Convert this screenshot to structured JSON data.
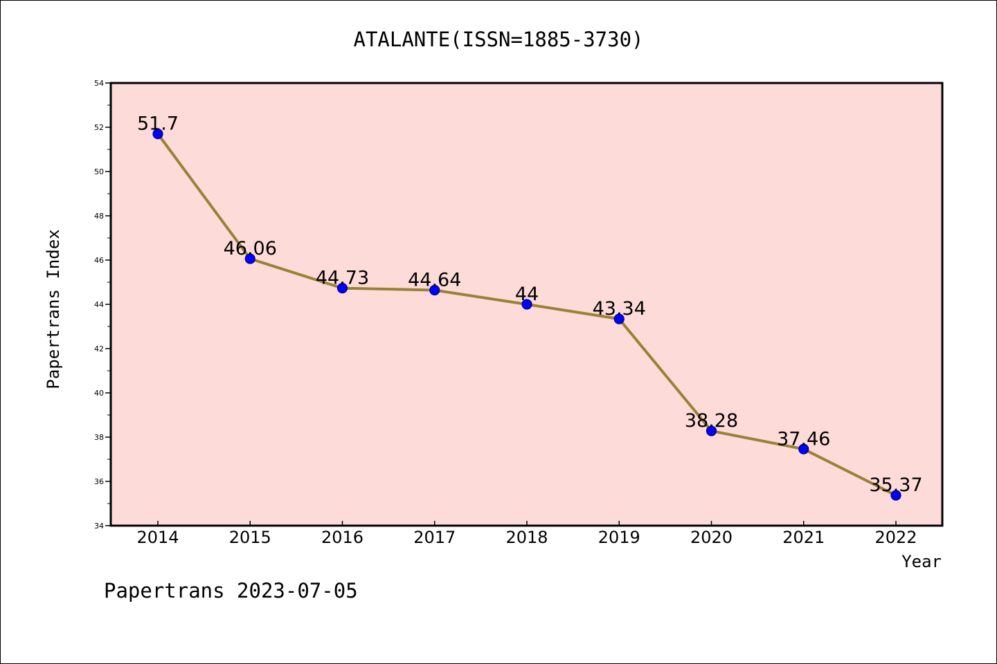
{
  "chart_data": {
    "type": "line",
    "title": "ATALANTE(ISSN=1885-3730)",
    "xlabel": "Year",
    "ylabel": "Papertrans Index",
    "categories": [
      "2014",
      "2015",
      "2016",
      "2017",
      "2018",
      "2019",
      "2020",
      "2021",
      "2022"
    ],
    "values": [
      51.7,
      46.06,
      44.73,
      44.64,
      44,
      43.34,
      38.28,
      37.46,
      35.37
    ],
    "data_labels": [
      "51.7",
      "46.06",
      "44.73",
      "44.64",
      "44",
      "43.34",
      "38.28",
      "37.46",
      "35.37"
    ],
    "ylim": [
      34,
      54
    ],
    "yticks": [
      34,
      36,
      38,
      40,
      42,
      44,
      46,
      48,
      50,
      52,
      54
    ],
    "ytick_labels": [
      "34",
      "36",
      "38",
      "40",
      "42",
      "44",
      "46",
      "48",
      "50",
      "52",
      "54"
    ],
    "grid": false,
    "legend": "none",
    "colors": {
      "plot_background": "#fddbd8",
      "line": "#998236",
      "marker_fill": "#0000ff",
      "marker_edge": "#000080",
      "axis": "#000000"
    }
  },
  "footer": {
    "text": "Papertrans 2023-07-05"
  }
}
